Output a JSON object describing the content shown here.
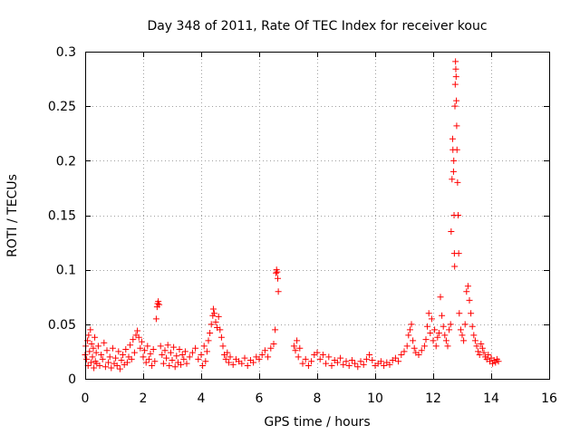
{
  "chart_data": {
    "type": "scatter",
    "title": "Day 348 of 2011, Rate Of TEC Index for receiver kouc",
    "xlabel": "GPS time / hours",
    "ylabel": "ROTI / TECUs",
    "xlim": [
      0,
      16
    ],
    "ylim": [
      0,
      0.3
    ],
    "xticks": [
      0,
      2,
      4,
      6,
      8,
      10,
      12,
      14,
      16
    ],
    "xtick_labels": [
      "0",
      "2",
      "4",
      "6",
      "8",
      "10",
      "12",
      "14",
      "16"
    ],
    "yticks": [
      0,
      0.05,
      0.1,
      0.15,
      0.2,
      0.25,
      0.3
    ],
    "ytick_labels": [
      "0",
      "0.05",
      "0.1",
      "0.15",
      "0.2",
      "0.25",
      "0.3"
    ],
    "grid": true,
    "marker": "+",
    "color": "#ff0000",
    "series": [
      {
        "name": "ROTI",
        "points": [
          [
            0.0,
            0.022
          ],
          [
            0.02,
            0.03
          ],
          [
            0.05,
            0.018
          ],
          [
            0.08,
            0.035
          ],
          [
            0.1,
            0.012
          ],
          [
            0.12,
            0.04
          ],
          [
            0.15,
            0.025
          ],
          [
            0.18,
            0.045
          ],
          [
            0.2,
            0.015
          ],
          [
            0.22,
            0.032
          ],
          [
            0.25,
            0.02
          ],
          [
            0.28,
            0.028
          ],
          [
            0.3,
            0.01
          ],
          [
            0.33,
            0.038
          ],
          [
            0.35,
            0.016
          ],
          [
            0.38,
            0.024
          ],
          [
            0.4,
            0.014
          ],
          [
            0.45,
            0.03
          ],
          [
            0.5,
            0.012
          ],
          [
            0.55,
            0.022
          ],
          [
            0.6,
            0.018
          ],
          [
            0.65,
            0.033
          ],
          [
            0.7,
            0.011
          ],
          [
            0.75,
            0.026
          ],
          [
            0.8,
            0.015
          ],
          [
            0.85,
            0.02
          ],
          [
            0.9,
            0.01
          ],
          [
            0.95,
            0.028
          ],
          [
            1.0,
            0.014
          ],
          [
            1.05,
            0.019
          ],
          [
            1.1,
            0.012
          ],
          [
            1.15,
            0.025
          ],
          [
            1.2,
            0.009
          ],
          [
            1.25,
            0.017
          ],
          [
            1.3,
            0.022
          ],
          [
            1.35,
            0.013
          ],
          [
            1.4,
            0.027
          ],
          [
            1.45,
            0.015
          ],
          [
            1.5,
            0.02
          ],
          [
            1.55,
            0.031
          ],
          [
            1.6,
            0.018
          ],
          [
            1.65,
            0.036
          ],
          [
            1.7,
            0.024
          ],
          [
            1.75,
            0.04
          ],
          [
            1.8,
            0.044
          ],
          [
            1.85,
            0.038
          ],
          [
            1.9,
            0.028
          ],
          [
            1.95,
            0.034
          ],
          [
            2.0,
            0.02
          ],
          [
            2.05,
            0.026
          ],
          [
            2.1,
            0.015
          ],
          [
            2.15,
            0.03
          ],
          [
            2.2,
            0.018
          ],
          [
            2.25,
            0.023
          ],
          [
            2.3,
            0.012
          ],
          [
            2.35,
            0.027
          ],
          [
            2.4,
            0.016
          ],
          [
            2.45,
            0.055
          ],
          [
            2.48,
            0.066
          ],
          [
            2.5,
            0.069
          ],
          [
            2.52,
            0.071
          ],
          [
            2.55,
            0.068
          ],
          [
            2.6,
            0.03
          ],
          [
            2.65,
            0.022
          ],
          [
            2.7,
            0.014
          ],
          [
            2.75,
            0.026
          ],
          [
            2.8,
            0.019
          ],
          [
            2.85,
            0.031
          ],
          [
            2.9,
            0.012
          ],
          [
            2.95,
            0.024
          ],
          [
            3.0,
            0.017
          ],
          [
            3.05,
            0.029
          ],
          [
            3.1,
            0.011
          ],
          [
            3.15,
            0.021
          ],
          [
            3.2,
            0.015
          ],
          [
            3.25,
            0.027
          ],
          [
            3.3,
            0.013
          ],
          [
            3.35,
            0.022
          ],
          [
            3.4,
            0.018
          ],
          [
            3.45,
            0.025
          ],
          [
            3.5,
            0.014
          ],
          [
            3.6,
            0.02
          ],
          [
            3.7,
            0.024
          ],
          [
            3.8,
            0.028
          ],
          [
            3.9,
            0.018
          ],
          [
            4.0,
            0.022
          ],
          [
            4.05,
            0.012
          ],
          [
            4.1,
            0.03
          ],
          [
            4.15,
            0.016
          ],
          [
            4.2,
            0.025
          ],
          [
            4.25,
            0.035
          ],
          [
            4.3,
            0.042
          ],
          [
            4.35,
            0.05
          ],
          [
            4.4,
            0.058
          ],
          [
            4.42,
            0.064
          ],
          [
            4.45,
            0.06
          ],
          [
            4.5,
            0.052
          ],
          [
            4.55,
            0.047
          ],
          [
            4.6,
            0.057
          ],
          [
            4.65,
            0.045
          ],
          [
            4.7,
            0.038
          ],
          [
            4.75,
            0.03
          ],
          [
            4.8,
            0.022
          ],
          [
            4.85,
            0.018
          ],
          [
            4.9,
            0.024
          ],
          [
            4.95,
            0.015
          ],
          [
            5.0,
            0.02
          ],
          [
            5.1,
            0.013
          ],
          [
            5.2,
            0.018
          ],
          [
            5.3,
            0.016
          ],
          [
            5.4,
            0.014
          ],
          [
            5.5,
            0.019
          ],
          [
            5.6,
            0.012
          ],
          [
            5.7,
            0.017
          ],
          [
            5.8,
            0.015
          ],
          [
            5.9,
            0.02
          ],
          [
            6.0,
            0.018
          ],
          [
            6.1,
            0.022
          ],
          [
            6.2,
            0.026
          ],
          [
            6.3,
            0.02
          ],
          [
            6.4,
            0.028
          ],
          [
            6.5,
            0.032
          ],
          [
            6.55,
            0.045
          ],
          [
            6.58,
            0.097
          ],
          [
            6.6,
            0.1
          ],
          [
            6.62,
            0.098
          ],
          [
            6.64,
            0.092
          ],
          [
            6.66,
            0.08
          ],
          [
            7.2,
            0.03
          ],
          [
            7.25,
            0.026
          ],
          [
            7.3,
            0.035
          ],
          [
            7.35,
            0.02
          ],
          [
            7.4,
            0.028
          ],
          [
            7.5,
            0.014
          ],
          [
            7.6,
            0.018
          ],
          [
            7.7,
            0.012
          ],
          [
            7.8,
            0.016
          ],
          [
            7.9,
            0.022
          ],
          [
            8.0,
            0.024
          ],
          [
            8.1,
            0.018
          ],
          [
            8.2,
            0.022
          ],
          [
            8.3,
            0.014
          ],
          [
            8.4,
            0.02
          ],
          [
            8.5,
            0.012
          ],
          [
            8.6,
            0.017
          ],
          [
            8.7,
            0.015
          ],
          [
            8.8,
            0.019
          ],
          [
            8.9,
            0.013
          ],
          [
            9.0,
            0.016
          ],
          [
            9.1,
            0.012
          ],
          [
            9.2,
            0.017
          ],
          [
            9.3,
            0.014
          ],
          [
            9.4,
            0.011
          ],
          [
            9.5,
            0.016
          ],
          [
            9.6,
            0.013
          ],
          [
            9.7,
            0.018
          ],
          [
            9.8,
            0.022
          ],
          [
            9.9,
            0.017
          ],
          [
            10.0,
            0.012
          ],
          [
            10.1,
            0.014
          ],
          [
            10.2,
            0.016
          ],
          [
            10.3,
            0.012
          ],
          [
            10.4,
            0.015
          ],
          [
            10.5,
            0.013
          ],
          [
            10.6,
            0.017
          ],
          [
            10.7,
            0.019
          ],
          [
            10.8,
            0.016
          ],
          [
            10.9,
            0.022
          ],
          [
            11.0,
            0.025
          ],
          [
            11.1,
            0.03
          ],
          [
            11.15,
            0.04
          ],
          [
            11.2,
            0.045
          ],
          [
            11.25,
            0.05
          ],
          [
            11.3,
            0.035
          ],
          [
            11.35,
            0.028
          ],
          [
            11.4,
            0.024
          ],
          [
            11.5,
            0.022
          ],
          [
            11.6,
            0.026
          ],
          [
            11.7,
            0.03
          ],
          [
            11.75,
            0.036
          ],
          [
            11.8,
            0.048
          ],
          [
            11.85,
            0.06
          ],
          [
            11.9,
            0.042
          ],
          [
            11.95,
            0.055
          ],
          [
            12.0,
            0.035
          ],
          [
            12.05,
            0.045
          ],
          [
            12.1,
            0.03
          ],
          [
            12.15,
            0.038
          ],
          [
            12.2,
            0.042
          ],
          [
            12.25,
            0.075
          ],
          [
            12.3,
            0.058
          ],
          [
            12.35,
            0.048
          ],
          [
            12.4,
            0.04
          ],
          [
            12.45,
            0.035
          ],
          [
            12.5,
            0.03
          ],
          [
            12.55,
            0.045
          ],
          [
            12.6,
            0.05
          ],
          [
            12.62,
            0.135
          ],
          [
            12.65,
            0.183
          ],
          [
            12.67,
            0.22
          ],
          [
            12.68,
            0.21
          ],
          [
            12.7,
            0.19
          ],
          [
            12.71,
            0.2
          ],
          [
            12.72,
            0.15
          ],
          [
            12.73,
            0.115
          ],
          [
            12.74,
            0.103
          ],
          [
            12.75,
            0.25
          ],
          [
            12.76,
            0.27
          ],
          [
            12.77,
            0.291
          ],
          [
            12.78,
            0.284
          ],
          [
            12.79,
            0.277
          ],
          [
            12.8,
            0.255
          ],
          [
            12.81,
            0.232
          ],
          [
            12.82,
            0.21
          ],
          [
            12.84,
            0.18
          ],
          [
            12.86,
            0.15
          ],
          [
            12.88,
            0.115
          ],
          [
            12.9,
            0.06
          ],
          [
            12.95,
            0.045
          ],
          [
            13.0,
            0.04
          ],
          [
            13.05,
            0.035
          ],
          [
            13.1,
            0.05
          ],
          [
            13.15,
            0.08
          ],
          [
            13.2,
            0.085
          ],
          [
            13.25,
            0.072
          ],
          [
            13.3,
            0.06
          ],
          [
            13.35,
            0.048
          ],
          [
            13.4,
            0.04
          ],
          [
            13.45,
            0.035
          ],
          [
            13.5,
            0.03
          ],
          [
            13.55,
            0.025
          ],
          [
            13.6,
            0.022
          ],
          [
            13.65,
            0.032
          ],
          [
            13.7,
            0.028
          ],
          [
            13.75,
            0.024
          ],
          [
            13.8,
            0.02
          ],
          [
            13.85,
            0.018
          ],
          [
            13.9,
            0.022
          ],
          [
            13.95,
            0.016
          ],
          [
            14.0,
            0.019
          ],
          [
            14.05,
            0.014
          ],
          [
            14.1,
            0.017
          ],
          [
            14.15,
            0.015
          ],
          [
            14.2,
            0.018
          ],
          [
            14.25,
            0.016
          ]
        ]
      }
    ]
  }
}
